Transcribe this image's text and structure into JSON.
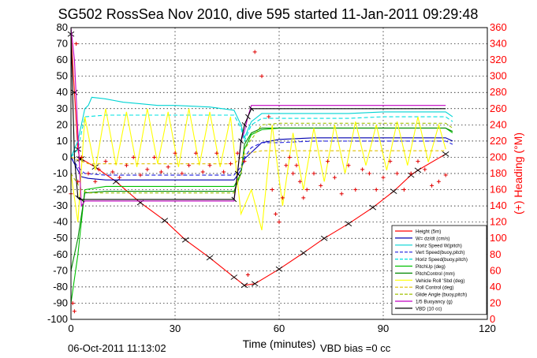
{
  "chart_data": {
    "type": "line",
    "title": "SG502 RossSea Nov 2010, dive 595 started 11-Jan-2011 09:29:48",
    "xlabel": "Time (minutes)",
    "ylabel_right": "(+) Heading (°M)",
    "xlim": [
      0,
      120
    ],
    "ylim": [
      -100,
      80
    ],
    "ylim_right": [
      0,
      360
    ],
    "x_ticks": [
      "0",
      "30",
      "60",
      "90",
      "120"
    ],
    "y_ticks": [
      "80",
      "70",
      "60",
      "50",
      "40",
      "30",
      "20",
      "10",
      "0",
      "-10",
      "-20",
      "-30",
      "-40",
      "-50",
      "-60",
      "-70",
      "-80",
      "-90",
      "-100"
    ],
    "y_ticks_right": [
      "360",
      "340",
      "320",
      "300",
      "280",
      "260",
      "240",
      "220",
      "200",
      "180",
      "160",
      "140",
      "120",
      "100",
      "80",
      "60",
      "40",
      "20",
      "0"
    ],
    "grid": true,
    "legend_position": "bottom-right",
    "footer_left": "06-Oct-2011 11:13:02",
    "footer_right": "VBD bias =0 cc",
    "colors": {
      "height": "#ff0000",
      "w": "#0000b0",
      "horz_w": "#00d4d4",
      "vert_buoy": "#2020e0",
      "horz_buoy": "#00e0e0",
      "pitch_up": "#00c000",
      "pitch_control": "#008800",
      "vehicle_roll": "#ffff00",
      "roll_control": "#e0c000",
      "glide_angle": "#a0c000",
      "buoyancy": "#c000c0",
      "vbd": "#000000",
      "heading": "#e00000",
      "axis_right": "#ff0000"
    },
    "series": [
      {
        "name": "Height (5m)",
        "key": "height",
        "x": [
          0,
          1,
          2,
          2.5,
          3,
          7,
          13,
          20,
          27,
          33,
          40,
          47,
          50,
          53,
          60,
          67,
          73,
          80,
          87,
          93,
          98,
          100,
          108
        ],
        "y": [
          76,
          40,
          5,
          -1,
          -1,
          -6,
          -15,
          -28,
          -39,
          -51,
          -62,
          -74,
          -79,
          -78,
          -69,
          -59,
          -50,
          -41,
          -31,
          -21,
          -11,
          -8,
          2
        ]
      },
      {
        "name": "W= dz/dt (cm/s)",
        "key": "w",
        "x": [
          0,
          2,
          3,
          5,
          10,
          20,
          30,
          40,
          47,
          49,
          50,
          55,
          60,
          70,
          80,
          90,
          100,
          108,
          110
        ],
        "y": [
          0,
          -8,
          -12,
          -13,
          -14,
          -14,
          -14,
          -14,
          -14,
          -8,
          -1,
          9,
          11,
          12,
          12,
          12,
          12,
          12,
          10
        ]
      },
      {
        "name": "Horiz Speed W(pitch)",
        "key": "horz_w",
        "x": [
          0,
          2,
          4,
          5,
          6,
          10,
          15,
          20,
          25,
          30,
          40,
          47,
          49,
          50,
          52,
          55,
          60,
          70,
          80,
          90,
          100,
          108,
          110
        ],
        "y": [
          0,
          10,
          30,
          32,
          37,
          36,
          34,
          33,
          32,
          32,
          31,
          29,
          20,
          12,
          22,
          27,
          27,
          27,
          27,
          28,
          28,
          28,
          25
        ]
      },
      {
        "name": "Vert Speed(buoy,pitch)",
        "key": "vert_buoy",
        "x": [
          0,
          2,
          4,
          10,
          20,
          30,
          40,
          47,
          49,
          50,
          52,
          55,
          60,
          70,
          80,
          90,
          100,
          108,
          110
        ],
        "y": [
          0,
          -6,
          -10,
          -11,
          -11,
          -11,
          -11,
          -11,
          -6,
          0,
          6,
          9,
          9,
          10,
          10,
          10,
          10,
          10,
          8
        ]
      },
      {
        "name": "Horiz Speed(buoy,pitch)",
        "key": "horz_buoy",
        "x": [
          0,
          2,
          4,
          10,
          20,
          30,
          40,
          47,
          49,
          50,
          52,
          55,
          60,
          70,
          80,
          90,
          100,
          108,
          110
        ],
        "y": [
          0,
          5,
          25,
          26,
          26,
          26,
          26,
          26,
          18,
          10,
          20,
          24,
          24,
          24,
          24,
          25,
          25,
          25,
          22
        ]
      },
      {
        "name": "PitchUp (deg)",
        "key": "pitch_up",
        "x": [
          0,
          2,
          4,
          10,
          20,
          30,
          40,
          47,
          49,
          50,
          52,
          55,
          60,
          70,
          80,
          90,
          100,
          108,
          110
        ],
        "y": [
          -90,
          -60,
          -20,
          -18,
          -18,
          -18,
          -18,
          -18,
          -10,
          5,
          14,
          17,
          18,
          18,
          18,
          18,
          18,
          18,
          15
        ]
      },
      {
        "name": "PitchControl (mm)",
        "key": "pitch_control",
        "x": [
          0,
          2,
          4,
          10,
          20,
          30,
          40,
          47,
          49,
          50,
          52,
          55,
          60,
          70,
          80,
          90,
          100,
          108,
          110
        ],
        "y": [
          -70,
          -50,
          -22,
          -21,
          -21,
          -21,
          -21,
          -21,
          -10,
          8,
          15,
          18,
          18,
          18,
          18,
          18,
          18,
          18,
          16
        ]
      },
      {
        "name": "Vehicle Roll 'Sbd (deg)",
        "key": "vehicle_roll",
        "x": [
          0,
          2,
          4,
          7,
          10,
          13,
          16,
          19,
          22,
          25,
          28,
          31,
          34,
          37,
          40,
          43,
          46,
          49,
          52,
          55,
          58,
          61,
          64,
          67,
          70,
          73,
          76,
          79,
          82,
          85,
          88,
          91,
          94,
          97,
          100,
          103,
          106,
          108
        ],
        "y": [
          -10,
          -40,
          25,
          -8,
          30,
          -5,
          28,
          -6,
          30,
          -4,
          28,
          -6,
          30,
          -5,
          28,
          -6,
          25,
          -35,
          -20,
          -45,
          20,
          -30,
          15,
          -20,
          18,
          -15,
          20,
          -10,
          22,
          -5,
          20,
          -8,
          22,
          -5,
          25,
          -3,
          20,
          5
        ]
      },
      {
        "name": "Roll Control (deg)",
        "key": "roll_control",
        "x": [
          0,
          5,
          10,
          20,
          30,
          40,
          47,
          50,
          55,
          60,
          70,
          80,
          90,
          100,
          108
        ],
        "y": [
          0,
          -4,
          -4,
          -4,
          -4,
          -4,
          -4,
          2,
          4,
          4,
          4,
          4,
          4,
          4,
          4
        ]
      },
      {
        "name": "Glide Angle (buoy,pitch)",
        "key": "glide_angle",
        "x": [
          0,
          3,
          5,
          10,
          20,
          30,
          40,
          47,
          49,
          50,
          55,
          60,
          70,
          80,
          90,
          100,
          108,
          110
        ],
        "y": [
          -10,
          -20,
          -22,
          -22,
          -22,
          -22,
          -22,
          -22,
          -10,
          5,
          20,
          21,
          21,
          21,
          21,
          21,
          21,
          18
        ]
      },
      {
        "name": "1/5 Buoyancy (g)",
        "key": "buoyancy",
        "x": [
          0,
          1,
          3,
          4,
          10,
          20,
          30,
          40,
          47,
          48,
          49,
          50,
          51,
          52,
          60,
          70,
          80,
          90,
          100,
          108
        ],
        "y": [
          80,
          60,
          -30,
          -27,
          -27,
          -27,
          -27,
          -27,
          -27,
          -10,
          10,
          16,
          25,
          32,
          32,
          32,
          32,
          32,
          32,
          32
        ]
      },
      {
        "name": "VBD (10 cc)",
        "key": "vbd",
        "x": [
          0,
          1,
          2,
          3,
          47,
          48,
          49,
          50,
          51,
          52,
          108
        ],
        "y": [
          76,
          0,
          -25,
          -26,
          -26,
          -10,
          10,
          20,
          25,
          30,
          30
        ]
      }
    ],
    "heading": {
      "axis": "right",
      "name": "Heading",
      "points": [
        [
          0,
          155
        ],
        [
          0.5,
          20
        ],
        [
          1,
          10
        ],
        [
          1.5,
          340
        ],
        [
          2,
          170
        ],
        [
          3,
          200
        ],
        [
          5,
          180
        ],
        [
          7,
          170
        ],
        [
          8,
          185
        ],
        [
          10,
          195
        ],
        [
          12,
          182
        ],
        [
          14,
          175
        ],
        [
          16,
          190
        ],
        [
          18,
          200
        ],
        [
          20,
          178
        ],
        [
          22,
          185
        ],
        [
          24,
          200
        ],
        [
          26,
          182
        ],
        [
          28,
          188
        ],
        [
          30,
          205
        ],
        [
          32,
          180
        ],
        [
          34,
          190
        ],
        [
          36,
          205
        ],
        [
          38,
          182
        ],
        [
          40,
          190
        ],
        [
          42,
          205
        ],
        [
          44,
          182
        ],
        [
          46,
          192
        ],
        [
          48,
          205
        ],
        [
          50,
          195
        ],
        [
          51,
          55
        ],
        [
          53,
          330
        ],
        [
          55,
          300
        ],
        [
          57,
          250
        ],
        [
          58,
          160
        ],
        [
          59,
          130
        ],
        [
          60,
          120
        ],
        [
          61,
          150
        ],
        [
          62,
          190
        ],
        [
          63,
          200
        ],
        [
          64,
          180
        ],
        [
          65,
          190
        ],
        [
          66,
          170
        ],
        [
          67,
          150
        ],
        [
          68,
          160
        ],
        [
          70,
          180
        ],
        [
          72,
          165
        ],
        [
          74,
          195
        ],
        [
          76,
          175
        ],
        [
          78,
          155
        ],
        [
          80,
          190
        ],
        [
          82,
          160
        ],
        [
          84,
          185
        ],
        [
          86,
          180
        ],
        [
          88,
          160
        ],
        [
          90,
          175
        ],
        [
          92,
          195
        ],
        [
          94,
          180
        ],
        [
          96,
          160
        ],
        [
          98,
          180
        ],
        [
          100,
          195
        ],
        [
          102,
          185
        ],
        [
          104,
          165
        ],
        [
          106,
          170
        ],
        [
          108,
          178
        ]
      ]
    }
  }
}
